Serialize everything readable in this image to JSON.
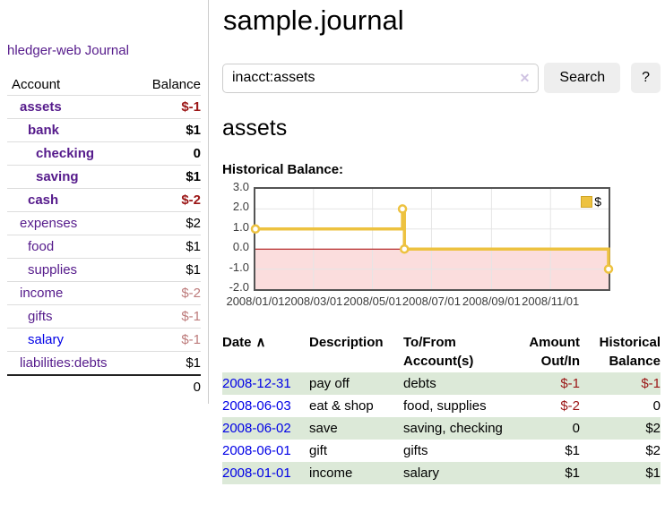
{
  "sidebar": {
    "brand": "hledger-web",
    "journal_link": "Journal",
    "table": {
      "account_header": "Account",
      "balance_header": "Balance",
      "rows": [
        {
          "name": "assets",
          "depth": 1,
          "bold": true,
          "balance": "$-1",
          "balance_style": "neg-strong"
        },
        {
          "name": "bank",
          "depth": 2,
          "bold": true,
          "balance": "$1",
          "balance_style": "pos"
        },
        {
          "name": "checking",
          "depth": 3,
          "bold": true,
          "balance": "0",
          "balance_style": "pos"
        },
        {
          "name": "saving",
          "depth": 3,
          "bold": true,
          "balance": "$1",
          "balance_style": "pos"
        },
        {
          "name": "cash",
          "depth": 2,
          "bold": true,
          "balance": "$-2",
          "balance_style": "neg-strong"
        },
        {
          "name": "expenses",
          "depth": 1,
          "bold": false,
          "balance": "$2",
          "balance_style": "pos"
        },
        {
          "name": "food",
          "depth": 2,
          "bold": false,
          "balance": "$1",
          "balance_style": "pos"
        },
        {
          "name": "supplies",
          "depth": 2,
          "bold": false,
          "balance": "$1",
          "balance_style": "pos"
        },
        {
          "name": "income",
          "depth": 1,
          "bold": false,
          "balance": "$-2",
          "balance_style": "neg-muted"
        },
        {
          "name": "gifts",
          "depth": 2,
          "bold": false,
          "balance": "$-1",
          "balance_style": "neg-muted"
        },
        {
          "name": "salary",
          "depth": 2,
          "bold": false,
          "link_color": "blue",
          "balance": "$-1",
          "balance_style": "neg-muted"
        },
        {
          "name": "liabilities:debts",
          "depth": 1,
          "bold": false,
          "balance": "$1",
          "balance_style": "pos"
        }
      ],
      "total": "0"
    }
  },
  "header": {
    "title": "sample.journal"
  },
  "search": {
    "query": "inacct:assets",
    "clear_icon": "✕",
    "search_label": "Search",
    "help_label": "?"
  },
  "main": {
    "account_heading": "assets",
    "chart_title": "Historical Balance:"
  },
  "chart_data": {
    "type": "line",
    "title": "Historical Balance:",
    "line_style": "step",
    "series": [
      {
        "name": "$",
        "color": "#edc240",
        "points": [
          {
            "date": "2008-01-01",
            "day": 0,
            "value": 1
          },
          {
            "date": "2008-06-01",
            "day": 152,
            "value": 2
          },
          {
            "date": "2008-06-03",
            "day": 154,
            "value": 0
          },
          {
            "date": "2008-12-31",
            "day": 365,
            "value": -1
          }
        ]
      }
    ],
    "x_ticks": [
      {
        "label": "2008/01/01",
        "day": 0
      },
      {
        "label": "2008/03/01",
        "day": 60
      },
      {
        "label": "2008/05/01",
        "day": 121
      },
      {
        "label": "2008/07/01",
        "day": 182
      },
      {
        "label": "2008/09/01",
        "day": 244
      },
      {
        "label": "2008/11/01",
        "day": 305
      }
    ],
    "y_ticks": [
      3.0,
      2.0,
      1.0,
      0.0,
      -1.0,
      -2.0
    ],
    "xlim_days": [
      0,
      365
    ],
    "ylim": [
      -2,
      3
    ],
    "grid": true,
    "legend_position": "top-right",
    "grid_color": "#e5e5e5",
    "negative_region_color": "#fbdddd",
    "zero_line_color": "#a40000",
    "border_color": "#545454"
  },
  "register": {
    "headers": {
      "date": "Date",
      "sort_caret": "∧",
      "description": "Description",
      "accounts": "To/From Account(s)",
      "amount": "Amount Out/In",
      "balance": "Historical Balance"
    },
    "rows": [
      {
        "date": "2008-12-31",
        "description": "pay off",
        "accounts": "debts",
        "amount": "$-1",
        "amount_neg": true,
        "balance": "$-1",
        "balance_neg": true,
        "green": true
      },
      {
        "date": "2008-06-03",
        "description": "eat & shop",
        "accounts": "food, supplies",
        "amount": "$-2",
        "amount_neg": true,
        "balance": "0",
        "balance_neg": false,
        "green": false
      },
      {
        "date": "2008-06-02",
        "description": "save",
        "accounts": "saving, checking",
        "amount": "0",
        "amount_neg": false,
        "balance": "$2",
        "balance_neg": false,
        "green": true
      },
      {
        "date": "2008-06-01",
        "description": "gift",
        "accounts": "gifts",
        "amount": "$1",
        "amount_neg": false,
        "balance": "$2",
        "balance_neg": false,
        "green": false
      },
      {
        "date": "2008-01-01",
        "description": "income",
        "accounts": "salary",
        "amount": "$1",
        "amount_neg": false,
        "balance": "$1",
        "balance_neg": false,
        "green": true
      }
    ]
  }
}
